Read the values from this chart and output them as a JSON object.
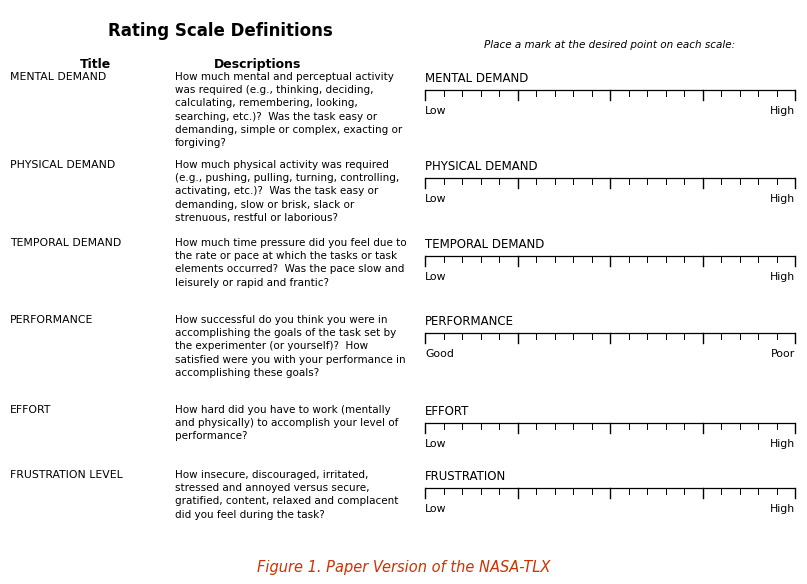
{
  "title": "Rating Scale Definitions",
  "subtitle_right": "Place a mark at the desired point on each scale:",
  "caption": "Figure 1. Paper Version of the NASA-TLX",
  "header_title": "Title",
  "header_desc": "Descriptions",
  "rows": [
    {
      "title": "MENTAL DEMAND",
      "description": "How much mental and perceptual activity\nwas required (e.g., thinking, deciding,\ncalculating, remembering, looking,\nsearching, etc.)?  Was the task easy or\ndemanding, simple or complex, exacting or\nforgiving?",
      "scale_label": "MENTAL DEMAND",
      "left_label": "Low",
      "right_label": "High"
    },
    {
      "title": "PHYSICAL DEMAND",
      "description": "How much physical activity was required\n(e.g., pushing, pulling, turning, controlling,\nactivating, etc.)?  Was the task easy or\ndemanding, slow or brisk, slack or\nstrenuous, restful or laborious?",
      "scale_label": "PHYSICAL DEMAND",
      "left_label": "Low",
      "right_label": "High"
    },
    {
      "title": "TEMPORAL DEMAND",
      "description": "How much time pressure did you feel due to\nthe rate or pace at which the tasks or task\nelements occurred?  Was the pace slow and\nleisurely or rapid and frantic?",
      "scale_label": "TEMPORAL DEMAND",
      "left_label": "Low",
      "right_label": "High"
    },
    {
      "title": "PERFORMANCE",
      "description": "How successful do you think you were in\naccomplishing the goals of the task set by\nthe experimenter (or yourself)?  How\nsatisfied were you with your performance in\naccomplishing these goals?",
      "scale_label": "PERFORMANCE",
      "left_label": "Good",
      "right_label": "Poor"
    },
    {
      "title": "EFFORT",
      "description": "How hard did you have to work (mentally\nand physically) to accomplish your level of\nperformance?",
      "scale_label": "EFFORT",
      "left_label": "Low",
      "right_label": "High"
    },
    {
      "title": "FRUSTRATION LEVEL",
      "description": "How insecure, discouraged, irritated,\nstressed and annoyed versus secure,\ngratified, content, relaxed and complacent\ndid you feel during the task?",
      "scale_label": "FRUSTRATION",
      "left_label": "Low",
      "right_label": "High"
    }
  ],
  "bg_color": "#ffffff",
  "text_color": "#000000",
  "caption_color": "#cc3300",
  "title_fontsize": 12,
  "body_fontsize": 7.8,
  "scale_label_fontsize": 8.5,
  "header_fontsize": 9,
  "caption_fontsize": 10.5
}
